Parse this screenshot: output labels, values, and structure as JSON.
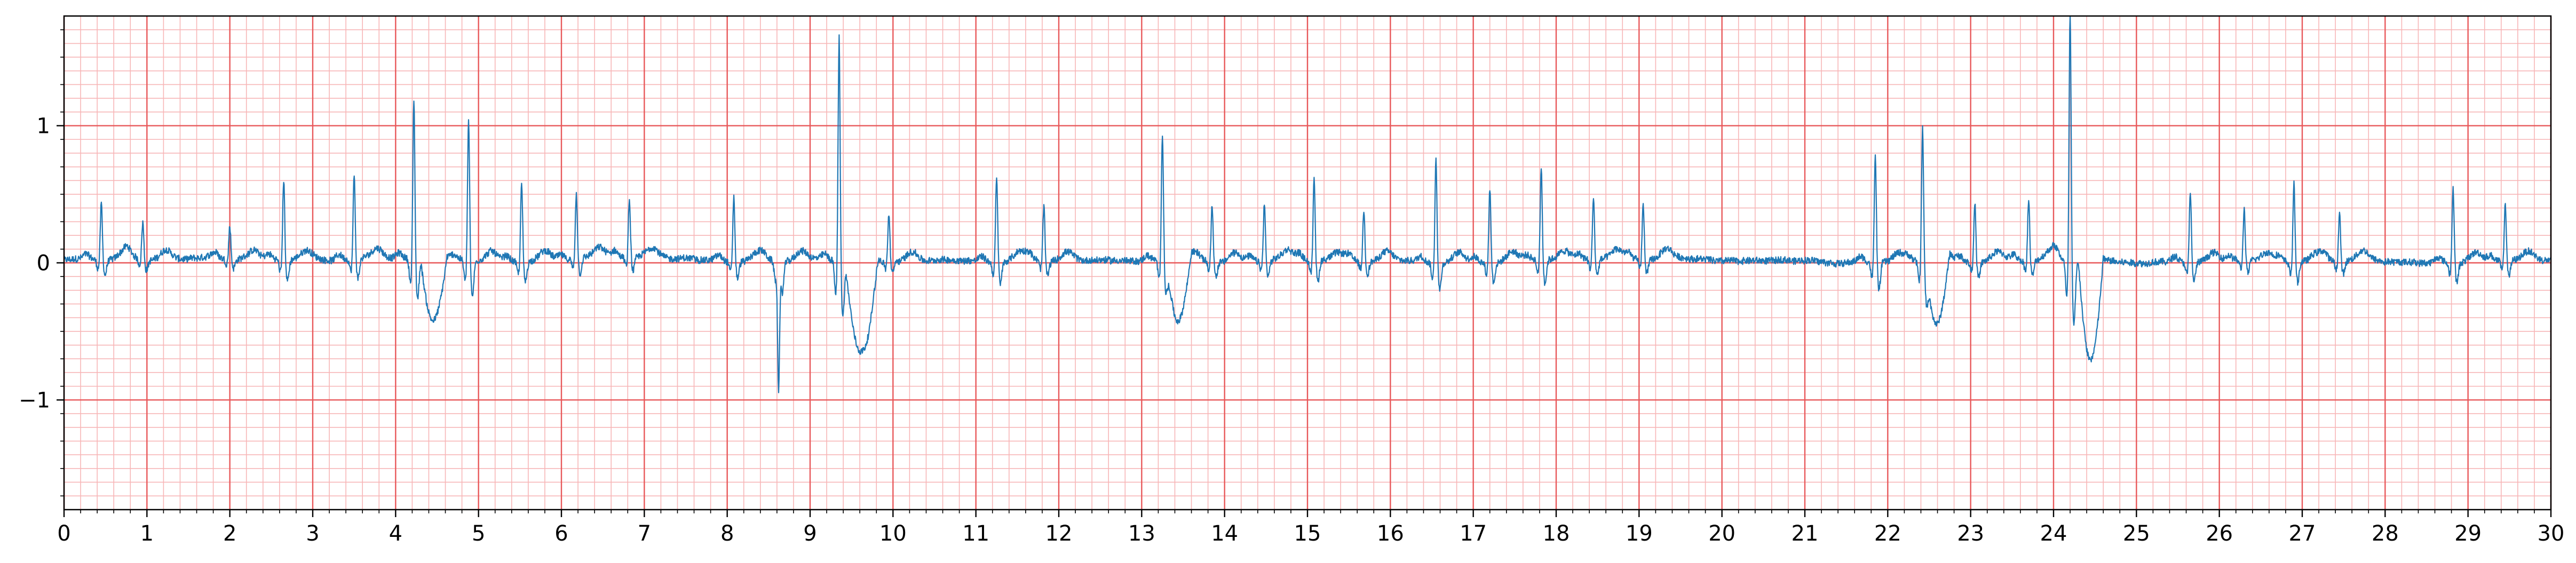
{
  "chart_data": {
    "type": "line",
    "title": "",
    "xlabel": "",
    "ylabel": "",
    "xlim": [
      0,
      30
    ],
    "ylim": [
      -1.8,
      1.8
    ],
    "x_ticks": [
      "0",
      "1",
      "2",
      "3",
      "4",
      "5",
      "6",
      "7",
      "8",
      "9",
      "10",
      "11",
      "12",
      "13",
      "14",
      "15",
      "16",
      "17",
      "18",
      "19",
      "20",
      "21",
      "22",
      "23",
      "24",
      "25",
      "26",
      "27",
      "28",
      "29",
      "30"
    ],
    "y_ticks": [
      {
        "value": 1,
        "label": "1"
      },
      {
        "value": 0,
        "label": "0"
      },
      {
        "value": -1,
        "label": "−1"
      }
    ],
    "grid": {
      "major": true,
      "minor": true,
      "major_x_step": 1,
      "minor_x_step": 0.2,
      "major_y_step": 1,
      "minor_y_step": 0.1
    },
    "colors": {
      "line": "#1f77b4",
      "major_grid": "#e8585a",
      "minor_grid": "#f7b6b7",
      "axes": "#000000"
    },
    "beats": [
      {
        "t": 0.45,
        "a": 0.42
      },
      {
        "t": 0.95,
        "a": 0.28
      },
      {
        "t": 2.0,
        "a": 0.25
      },
      {
        "t": 2.65,
        "a": 0.6
      },
      {
        "t": 3.5,
        "a": 0.62
      },
      {
        "t": 4.22,
        "a": 1.18
      },
      {
        "t": 4.88,
        "a": 1.05
      },
      {
        "t": 5.52,
        "a": 0.58
      },
      {
        "t": 6.18,
        "a": 0.48
      },
      {
        "t": 6.82,
        "a": 0.42
      },
      {
        "t": 8.08,
        "a": 0.48
      },
      {
        "t": 8.62,
        "a": -0.92
      },
      {
        "t": 9.35,
        "a": 1.65
      },
      {
        "t": 9.95,
        "a": 0.35
      },
      {
        "t": 11.25,
        "a": 0.62
      },
      {
        "t": 11.82,
        "a": 0.4
      },
      {
        "t": 13.25,
        "a": 0.95
      },
      {
        "t": 13.85,
        "a": 0.42
      },
      {
        "t": 14.48,
        "a": 0.42
      },
      {
        "t": 15.08,
        "a": 0.62
      },
      {
        "t": 15.68,
        "a": 0.38
      },
      {
        "t": 16.55,
        "a": 0.78
      },
      {
        "t": 17.2,
        "a": 0.55
      },
      {
        "t": 17.82,
        "a": 0.68
      },
      {
        "t": 18.45,
        "a": 0.45
      },
      {
        "t": 19.05,
        "a": 0.4
      },
      {
        "t": 21.85,
        "a": 0.78
      },
      {
        "t": 22.42,
        "a": 0.98
      },
      {
        "t": 23.05,
        "a": 0.45
      },
      {
        "t": 23.7,
        "a": 0.45
      },
      {
        "t": 24.2,
        "a": 1.85
      },
      {
        "t": 25.65,
        "a": 0.52
      },
      {
        "t": 26.3,
        "a": 0.38
      },
      {
        "t": 26.9,
        "a": 0.58
      },
      {
        "t": 27.45,
        "a": 0.35
      },
      {
        "t": 28.82,
        "a": 0.55
      },
      {
        "t": 29.45,
        "a": 0.42
      }
    ],
    "wave_segments": [
      {
        "t0": 4.3,
        "t1": 4.62,
        "a": -0.5
      },
      {
        "t0": 9.42,
        "t1": 9.82,
        "a": -0.72
      },
      {
        "t0": 13.3,
        "t1": 13.6,
        "a": -0.48
      },
      {
        "t0": 22.45,
        "t1": 22.75,
        "a": -0.48
      },
      {
        "t0": 24.3,
        "t1": 24.6,
        "a": -0.78
      }
    ]
  }
}
